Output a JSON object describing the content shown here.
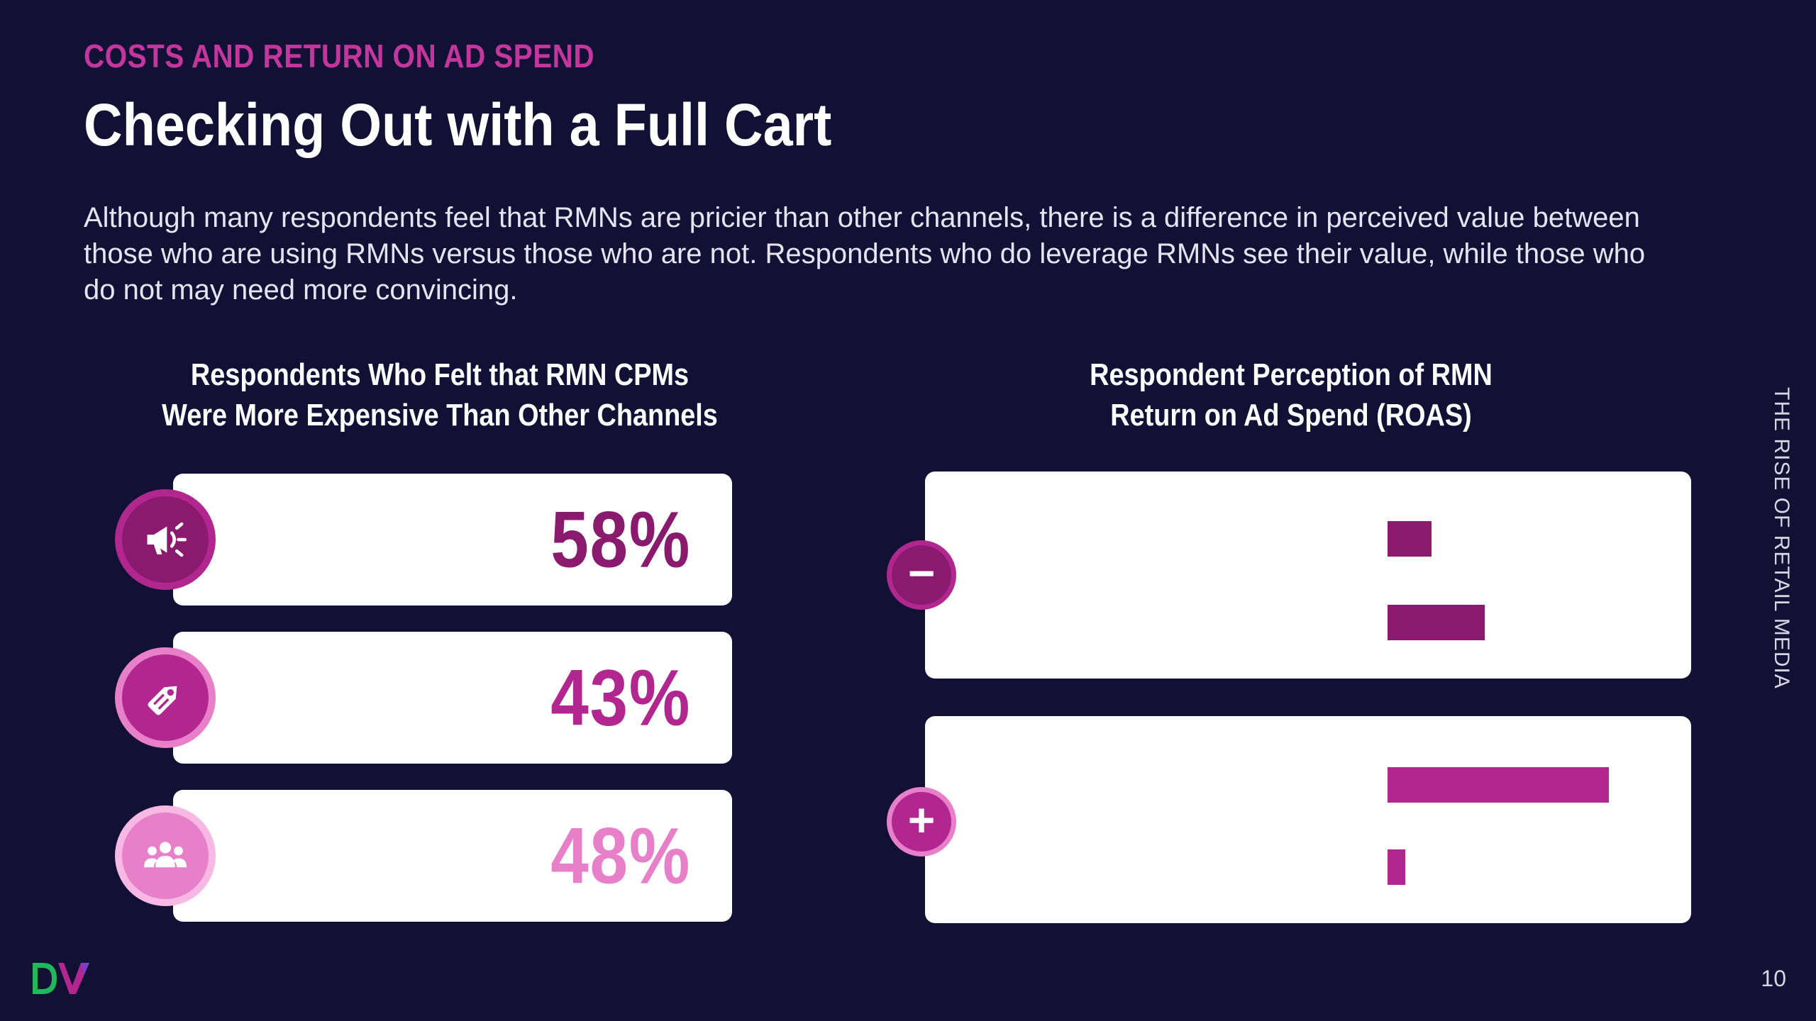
{
  "header": {
    "kicker": "COSTS AND RETURN ON AD SPEND",
    "title": "Checking Out with a Full Cart",
    "intro": "Although many respondents feel that RMNs are pricier than other channels, there is a difference in perceived value between those who are using RMNs versus those who are not. Respondents who do leverage RMNs see their value, while those who do not may need more convincing."
  },
  "left_panel": {
    "title_line1": "Respondents Who Felt that RMN CPMs",
    "title_line2": "Were More Expensive Than Other Channels",
    "stats": [
      {
        "value": "58%",
        "icon": "megaphone-icon",
        "color": "#8a1a6e"
      },
      {
        "value": "43%",
        "icon": "price-tag-icon",
        "color": "#b2268f"
      },
      {
        "value": "48%",
        "icon": "people-group-icon",
        "color": "#e77fc9"
      }
    ]
  },
  "right_panel": {
    "title_line1": "Respondent Perception of RMN",
    "title_line2": "Return on Ad Spend (ROAS)",
    "groups": [
      {
        "sign": "−",
        "icon": "minus-icon",
        "bars": [
          {
            "value": 0.2,
            "color": "#8a1a6e"
          },
          {
            "value": 0.44,
            "color": "#8a1a6e"
          }
        ]
      },
      {
        "sign": "+",
        "icon": "plus-icon",
        "bars": [
          {
            "value": 1.0,
            "color": "#b2268f"
          },
          {
            "value": 0.08,
            "color": "#b2268f"
          }
        ]
      }
    ]
  },
  "sidebar_text": "THE RISE OF RETAIL MEDIA",
  "footer": {
    "page_number": "10"
  },
  "colors": {
    "background": "#131035",
    "kicker": "#c2369e",
    "dark_magenta": "#8a1a6e",
    "magenta": "#b2268f",
    "pink": "#e77fc9"
  }
}
